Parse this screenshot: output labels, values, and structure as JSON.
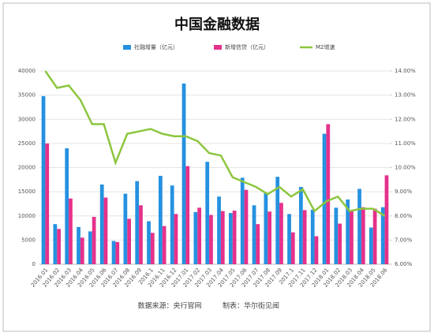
{
  "chart_data": {
    "type": "bar_line",
    "title": "中国金融数据",
    "source": "数据来源：央行官网",
    "maker": "制表：华尔街见闻",
    "categories": [
      "2016.01",
      "2016.02",
      "2016.03",
      "2016.04",
      "2016.05",
      "2016.06",
      "2016.07",
      "2016.08",
      "2016.09",
      "2016.1",
      "2016.11",
      "2016.12",
      "2017.01",
      "2017.02",
      "2017.03",
      "2017.04",
      "2017.05",
      "2017.06",
      "2017.07",
      "2017.08",
      "2017.09",
      "2017.1",
      "2017.11",
      "2017.12",
      "2018.01",
      "2018.02",
      "2018.03",
      "2018.04",
      "2018.05",
      "2018.06"
    ],
    "series": [
      {
        "name": "社融增量（亿元）",
        "color": "#2591e0",
        "kind": "bar",
        "values": [
          34800,
          8300,
          24000,
          7700,
          6800,
          16500,
          4800,
          14600,
          17200,
          8900,
          18300,
          16300,
          37400,
          10800,
          21200,
          14000,
          10600,
          17900,
          12200,
          14800,
          18100,
          10400,
          16000,
          11300,
          27000,
          11700,
          13400,
          15600,
          7600,
          11800
        ]
      },
      {
        "name": "新增信贷（亿元）",
        "color": "#e5318b",
        "kind": "bar",
        "values": [
          25000,
          7300,
          13600,
          5500,
          9800,
          13800,
          4600,
          9400,
          12200,
          6500,
          7900,
          10400,
          20300,
          11700,
          10200,
          11000,
          11100,
          15400,
          8300,
          10900,
          12700,
          6600,
          11200,
          5800,
          29000,
          8400,
          11200,
          11800,
          11500,
          18400
        ]
      },
      {
        "name": "M2增速",
        "color": "#8dc63f",
        "kind": "line",
        "axis": "y2",
        "values": [
          14.0,
          13.3,
          13.4,
          12.8,
          11.8,
          11.8,
          10.2,
          11.4,
          11.5,
          11.6,
          11.4,
          11.3,
          11.3,
          11.1,
          10.6,
          10.5,
          9.6,
          9.4,
          9.2,
          8.9,
          9.2,
          8.8,
          9.1,
          8.2,
          8.6,
          8.8,
          8.2,
          8.3,
          8.3,
          8.0
        ]
      }
    ],
    "ylim": [
      0,
      40000
    ],
    "yticks": [
      0,
      5000,
      10000,
      15000,
      20000,
      25000,
      30000,
      35000,
      40000
    ],
    "y2lim": [
      6,
      14
    ],
    "y2ticks": [
      {
        "value": 6,
        "label": "6.00%"
      },
      {
        "value": 7,
        "label": "7.00%"
      },
      {
        "value": 8,
        "label": "8.00%"
      },
      {
        "value": 9,
        "label": "9.00%"
      },
      {
        "value": 10,
        "label": "10.00%"
      },
      {
        "value": 11,
        "label": "11.00%"
      },
      {
        "value": 12,
        "label": "12.00%"
      },
      {
        "value": 13,
        "label": "13.00%"
      },
      {
        "value": 14,
        "label": "14.00%"
      }
    ],
    "legend": "top"
  }
}
